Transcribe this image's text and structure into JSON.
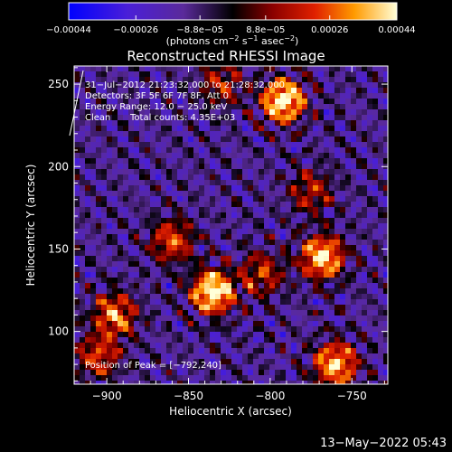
{
  "chart_data": {
    "type": "heatmap",
    "title": "Reconstructed RHESSI Image",
    "xlabel": "Heliocentric X (arcsec)",
    "ylabel": "Heliocentric Y (arcsec)",
    "xlim": [
      -920,
      -728
    ],
    "ylim": [
      68,
      261
    ],
    "xticks": [
      -900,
      -850,
      -800,
      -750
    ],
    "yticks": [
      100,
      150,
      200,
      250
    ],
    "xtick_labels": [
      "−900",
      "−850",
      "−800",
      "−750"
    ],
    "ytick_labels": [
      "100",
      "150",
      "200",
      "250"
    ],
    "colorbar": {
      "ticks": [
        -0.00044,
        -0.00026,
        -8.8e-05,
        8.8e-05,
        0.00026,
        0.00044
      ],
      "tick_labels": [
        "−0.00044",
        "−0.00026",
        "−8.8e−05",
        "8.8e−05",
        "0.00026",
        "0.00044"
      ],
      "range": [
        -0.00044,
        0.00044
      ],
      "unit_label": "(photons cm",
      "unit_sup1": "−2",
      "unit_mid": " s",
      "unit_sup2": "−1",
      "unit_mid2": " asec",
      "unit_sup3": "−2",
      "unit_end": ")"
    },
    "annotations": {
      "time": "31−Jul−2012 21:23:32.000 to 21:28:32.000",
      "detectors": "Detectors: 3F 5F 6F 7F 8F, Att 0",
      "energy": "Energy Range: 12.0 − 25.0 keV",
      "algorithm": "Clean",
      "counts": "Total counts: 4.35E+03",
      "peak": "Position of Peak = [−792,240]"
    },
    "sources": [
      {
        "x": -835,
        "y": 124,
        "intensity": 1.0
      },
      {
        "x": -792,
        "y": 240,
        "intensity": 1.0
      },
      {
        "x": -768,
        "y": 145,
        "intensity": 0.9
      },
      {
        "x": -760,
        "y": 80,
        "intensity": 0.85
      },
      {
        "x": -895,
        "y": 110,
        "intensity": 0.7
      },
      {
        "x": -860,
        "y": 155,
        "intensity": 0.6
      },
      {
        "x": -905,
        "y": 85,
        "intensity": 0.55
      },
      {
        "x": -805,
        "y": 135,
        "intensity": 0.5
      },
      {
        "x": -775,
        "y": 185,
        "intensity": 0.45
      },
      {
        "x": -830,
        "y": 250,
        "intensity": 0.45
      }
    ]
  },
  "footer": {
    "timestamp": "13−May−2022 05:43"
  },
  "colors": {
    "background": "#000000",
    "foreground": "#ffffff"
  }
}
